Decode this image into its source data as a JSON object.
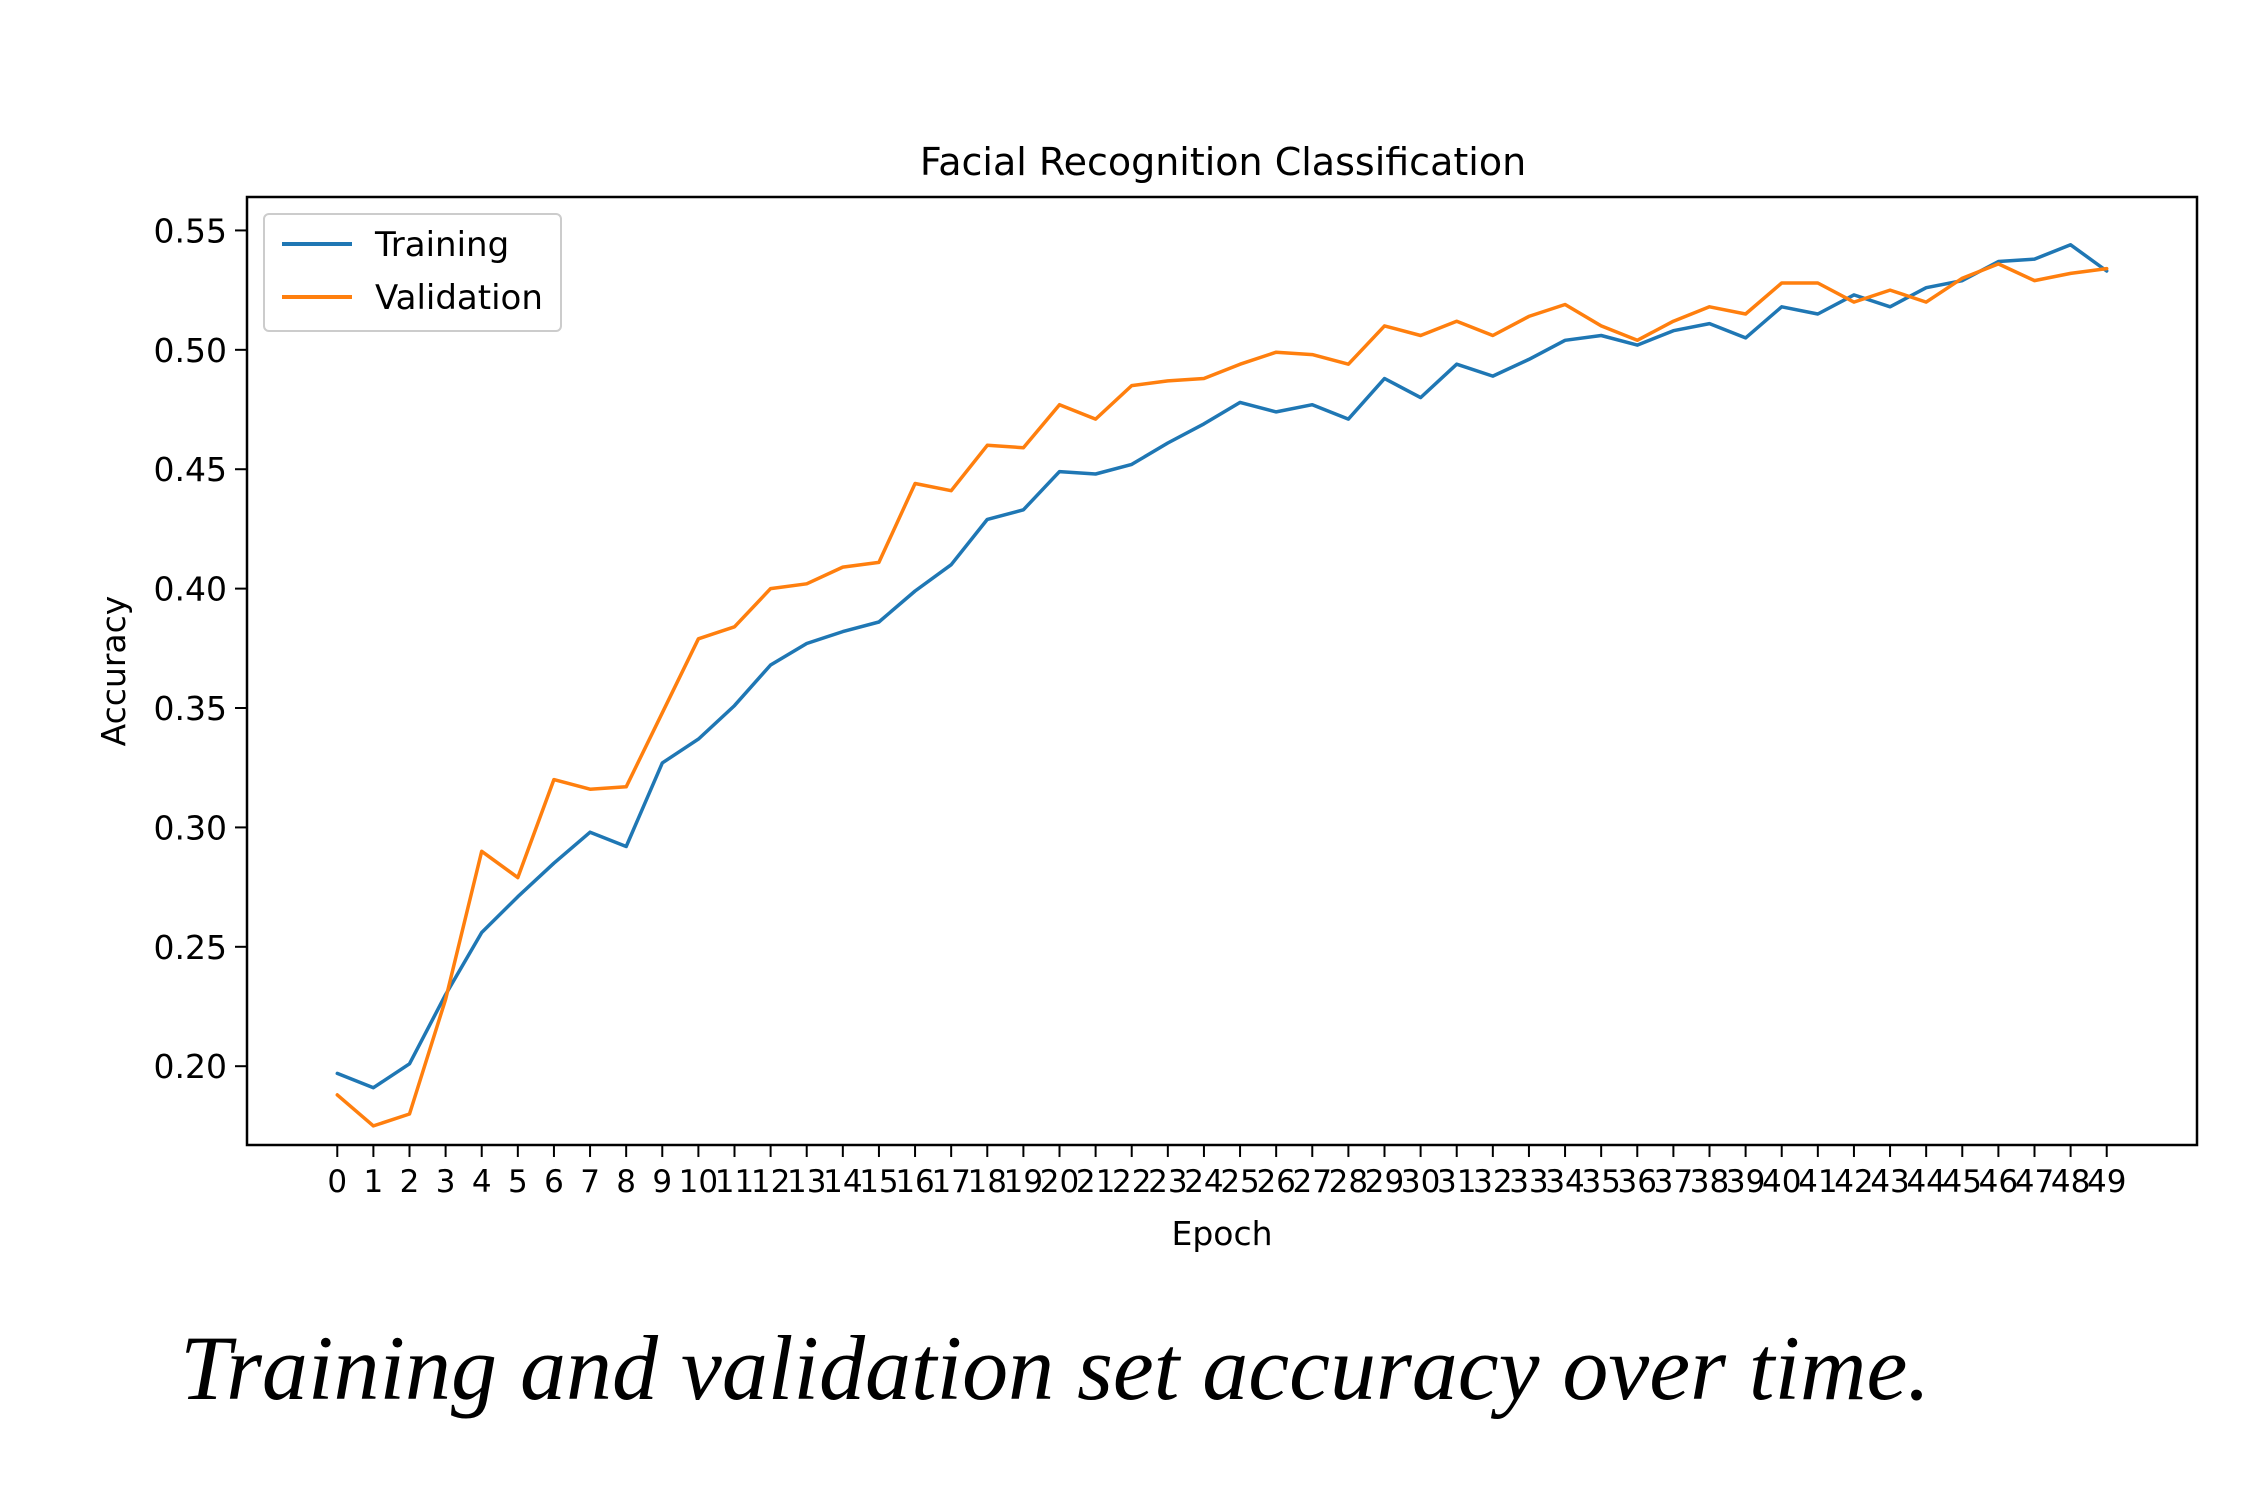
{
  "caption": "Training and validation set accuracy over time.",
  "chart_data": {
    "type": "line",
    "title": "Facial Recognition Classification",
    "xlabel": "Epoch",
    "ylabel": "Accuracy",
    "x": [
      0,
      1,
      2,
      3,
      4,
      5,
      6,
      7,
      8,
      9,
      10,
      11,
      12,
      13,
      14,
      15,
      16,
      17,
      18,
      19,
      20,
      21,
      22,
      23,
      24,
      25,
      26,
      27,
      28,
      29,
      30,
      31,
      32,
      33,
      34,
      35,
      36,
      37,
      38,
      39,
      40,
      41,
      42,
      43,
      44,
      45,
      46,
      47,
      48,
      49
    ],
    "x_tick_labels": [
      "0",
      "1",
      "2",
      "3",
      "4",
      "5",
      "6",
      "7",
      "8",
      "9",
      "10",
      "11",
      "12",
      "13",
      "14",
      "15",
      "16",
      "17",
      "18",
      "19",
      "20",
      "21",
      "22",
      "23",
      "24",
      "25",
      "26",
      "27",
      "28",
      "29",
      "30",
      "31",
      "32",
      "33",
      "34",
      "35",
      "36",
      "37",
      "38",
      "39",
      "40",
      "41",
      "42",
      "43",
      "44",
      "45",
      "46",
      "47",
      "48",
      "49"
    ],
    "xlim": [
      -2.5,
      51.5
    ],
    "ylim": [
      0.167,
      0.564
    ],
    "y_ticks": [
      0.2,
      0.25,
      0.3,
      0.35,
      0.4,
      0.45,
      0.5,
      0.55
    ],
    "y_tick_labels": [
      "0.20",
      "0.25",
      "0.30",
      "0.35",
      "0.40",
      "0.45",
      "0.50",
      "0.55"
    ],
    "grid": false,
    "legend_position": "top-left",
    "series": [
      {
        "name": "Training",
        "color": "#1f77b4",
        "values": [
          0.197,
          0.191,
          0.201,
          0.23,
          0.256,
          0.271,
          0.285,
          0.298,
          0.292,
          0.327,
          0.337,
          0.351,
          0.368,
          0.377,
          0.382,
          0.386,
          0.399,
          0.41,
          0.429,
          0.433,
          0.449,
          0.448,
          0.452,
          0.461,
          0.469,
          0.478,
          0.474,
          0.477,
          0.471,
          0.488,
          0.48,
          0.494,
          0.489,
          0.496,
          0.504,
          0.506,
          0.502,
          0.508,
          0.511,
          0.505,
          0.518,
          0.515,
          0.523,
          0.518,
          0.526,
          0.529,
          0.537,
          0.538,
          0.544,
          0.533
        ]
      },
      {
        "name": "Validation",
        "color": "#ff7f0e",
        "values": [
          0.188,
          0.175,
          0.18,
          0.228,
          0.29,
          0.279,
          0.32,
          0.316,
          0.317,
          0.348,
          0.379,
          0.384,
          0.4,
          0.402,
          0.409,
          0.411,
          0.444,
          0.441,
          0.46,
          0.459,
          0.477,
          0.471,
          0.485,
          0.487,
          0.488,
          0.494,
          0.499,
          0.498,
          0.494,
          0.51,
          0.506,
          0.512,
          0.506,
          0.514,
          0.519,
          0.51,
          0.504,
          0.512,
          0.518,
          0.515,
          0.528,
          0.528,
          0.52,
          0.525,
          0.52,
          0.53,
          0.536,
          0.529,
          0.532,
          0.534
        ]
      }
    ]
  }
}
